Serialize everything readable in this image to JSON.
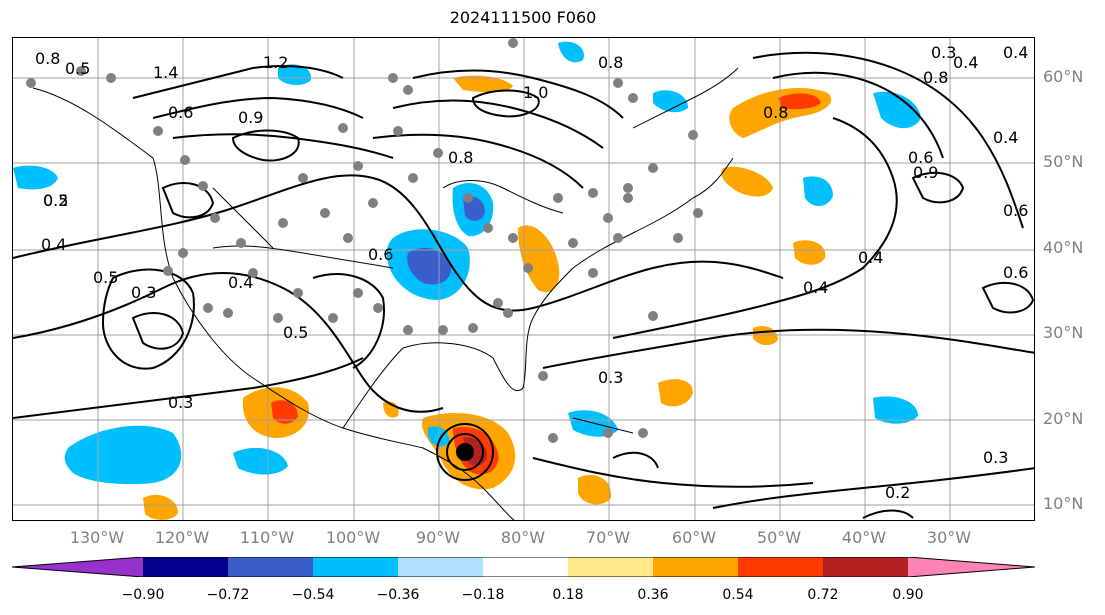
{
  "title": "2024111500 F060",
  "lat_labels": [
    "60°N",
    "50°N",
    "40°N",
    "30°N",
    "20°N",
    "10°N"
  ],
  "lon_labels": [
    "130°W",
    "120°W",
    "110°W",
    "100°W",
    "90°W",
    "80°W",
    "70°W",
    "60°W",
    "50°W",
    "40°W",
    "30°W"
  ],
  "colorbar": {
    "ticks": [
      "−0.90",
      "−0.72",
      "−0.54",
      "−0.36",
      "−0.18",
      "0.18",
      "0.36",
      "0.54",
      "0.72",
      "0.90"
    ],
    "colors": [
      "#9932cc",
      "#00008b",
      "#3a5fcd",
      "#00bfff",
      "#b0e2ff",
      "#ffffff",
      "#ffe98a",
      "#ffa500",
      "#ff3c00",
      "#b22222",
      "#ff83b4"
    ]
  },
  "contour_labels": [
    "0.8",
    "0.5",
    "1.4",
    "1.2",
    "0.6",
    "0.9",
    "1.0",
    "0.8",
    "0.8",
    "0.5",
    "0.9",
    "0.4",
    "0.4",
    "0.6",
    "0.2",
    "0.4",
    "0.5",
    "0.6",
    "0.8",
    "0.4",
    "0.6",
    "0.3",
    "0.5",
    "0.3",
    "0.3",
    "0.2",
    "0.3",
    "0.4",
    "0.6",
    "0.3",
    "0.4",
    "0.8",
    "0.4"
  ],
  "storm_marker": "filled-circle"
}
